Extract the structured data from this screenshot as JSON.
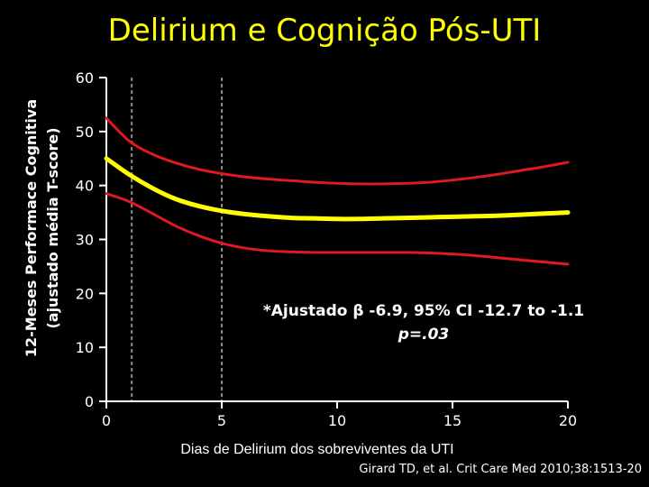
{
  "chart_data": {
    "type": "line",
    "title": "Delirium e Cognição Pós-UTI",
    "xlabel": "Dias de Delirium dos sobreviventes da UTI",
    "ylabel_line1": "12-Meses Performace Cognitiva",
    "ylabel_line2": "(ajustado média T-score)",
    "xlim": [
      0,
      20
    ],
    "ylim": [
      0,
      60
    ],
    "x_ticks": [
      0,
      5,
      10,
      15,
      20
    ],
    "y_ticks": [
      0,
      10,
      20,
      30,
      40,
      50,
      60
    ],
    "reference_lines_x": [
      1.1,
      5
    ],
    "series": [
      {
        "role": "upper",
        "color": "#e0191f",
        "x": [
          0,
          1,
          2,
          3,
          4,
          5,
          6,
          7,
          8,
          9,
          10,
          11,
          12,
          13,
          14,
          15,
          16,
          17,
          18,
          19,
          20
        ],
        "y": [
          52.5,
          48.2,
          45.8,
          44.2,
          43.0,
          42.2,
          41.6,
          41.2,
          40.9,
          40.6,
          40.4,
          40.3,
          40.3,
          40.4,
          40.6,
          41.0,
          41.5,
          42.1,
          42.8,
          43.5,
          44.3
        ]
      },
      {
        "role": "estimate",
        "color": "#ffff00",
        "x": [
          0,
          1,
          2,
          3,
          4,
          5,
          6,
          7,
          8,
          9,
          10,
          11,
          12,
          13,
          14,
          15,
          16,
          17,
          18,
          19,
          20
        ],
        "y": [
          45.0,
          42.0,
          39.5,
          37.5,
          36.2,
          35.3,
          34.7,
          34.3,
          34.0,
          33.9,
          33.8,
          33.8,
          33.9,
          34.0,
          34.1,
          34.2,
          34.3,
          34.4,
          34.6,
          34.8,
          35.0
        ]
      },
      {
        "role": "lower",
        "color": "#e0191f",
        "x": [
          0,
          1,
          2,
          3,
          4,
          5,
          6,
          7,
          8,
          9,
          10,
          11,
          12,
          13,
          14,
          15,
          16,
          17,
          18,
          19,
          20
        ],
        "y": [
          38.5,
          37.0,
          34.8,
          32.5,
          30.7,
          29.3,
          28.4,
          27.9,
          27.7,
          27.6,
          27.6,
          27.6,
          27.6,
          27.6,
          27.5,
          27.3,
          27.0,
          26.6,
          26.2,
          25.8,
          25.4
        ]
      }
    ]
  },
  "annotation": {
    "line1": "*Ajustado β -6.9, 95% CI -12.7 to -1.1",
    "line2": "p=.03"
  },
  "citation": "Girard TD, et al. Crit Care Med 2010;38:1513-20"
}
